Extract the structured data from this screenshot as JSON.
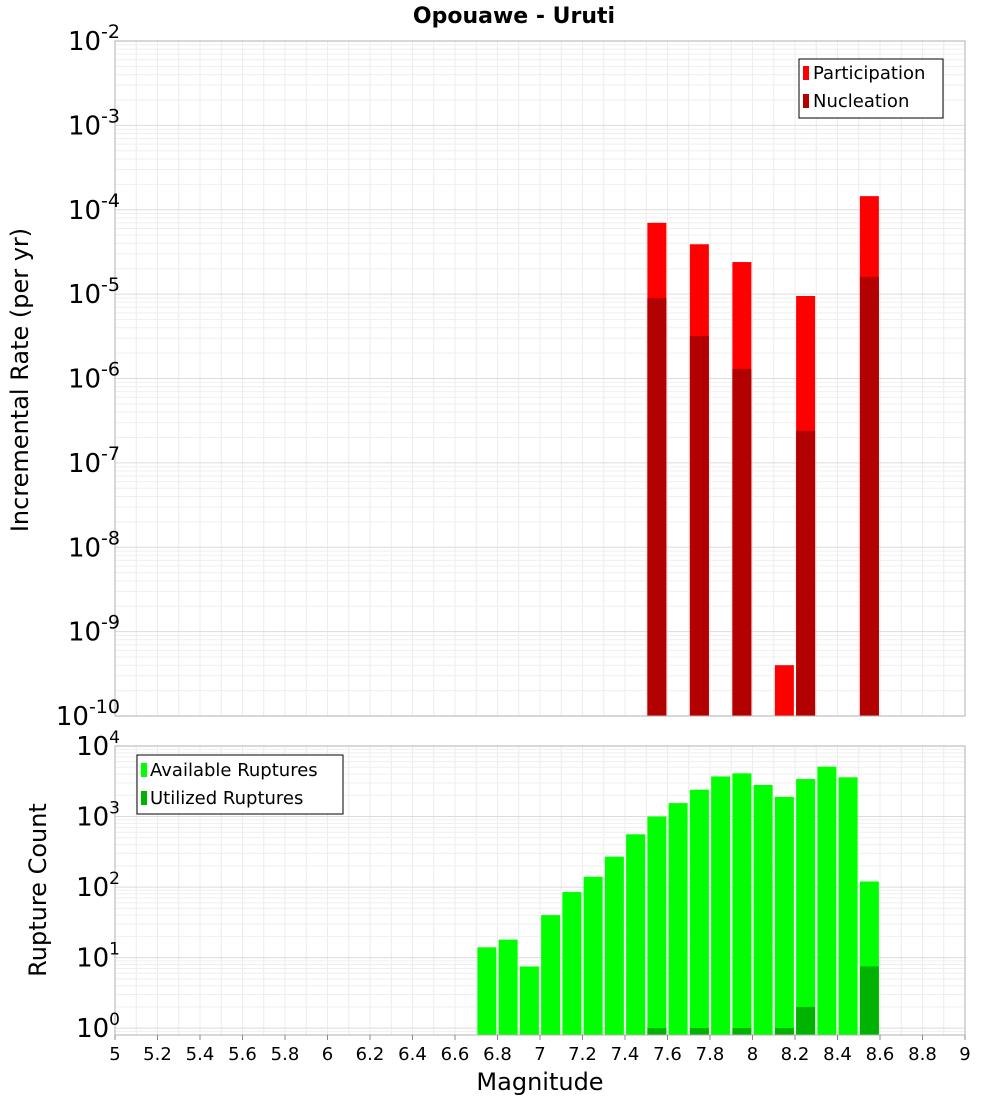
{
  "chart_data": [
    {
      "type": "bar",
      "title": "Opouawe - Uruti",
      "xlabel": "",
      "ylabel": "Incremental Rate (per yr)",
      "xlim": [
        5,
        9
      ],
      "ylim": [
        1e-10,
        0.01
      ],
      "yscale": "log",
      "grid": true,
      "legend_position": "top-right",
      "x": [
        7.55,
        7.75,
        7.95,
        8.15,
        8.25,
        8.55
      ],
      "series": [
        {
          "name": "Participation",
          "color": "#ff0000",
          "values": [
            7e-05,
            3.9e-05,
            2.4e-05,
            4e-10,
            9.5e-06,
            0.000145
          ]
        },
        {
          "name": "Nucleation",
          "color": "#b30000",
          "values": [
            9e-06,
            3.2e-06,
            1.3e-06,
            null,
            2.4e-07,
            1.6e-05
          ]
        }
      ],
      "ytick_exponents": [
        -10,
        -9,
        -8,
        -7,
        -6,
        -5,
        -4,
        -3,
        -2
      ]
    },
    {
      "type": "bar",
      "title": "",
      "xlabel": "Magnitude",
      "ylabel": "Rupture Count",
      "xlim": [
        5,
        9
      ],
      "ylim": [
        0.8,
        10000
      ],
      "yscale": "log",
      "grid": true,
      "legend_position": "top-left",
      "x": [
        6.75,
        6.85,
        6.95,
        7.05,
        7.15,
        7.25,
        7.35,
        7.45,
        7.55,
        7.65,
        7.75,
        7.85,
        7.95,
        8.05,
        8.15,
        8.25,
        8.35,
        8.45,
        8.55
      ],
      "series": [
        {
          "name": "Available Ruptures",
          "color": "#00ff00",
          "values": [
            14,
            18,
            7.5,
            40,
            85,
            140,
            270,
            560,
            1000,
            1550,
            2400,
            3700,
            4100,
            2800,
            1900,
            3400,
            5100,
            3600,
            120
          ]
        },
        {
          "name": "Utilized Ruptures",
          "color": "#00b300",
          "values": [
            null,
            null,
            null,
            null,
            null,
            null,
            null,
            null,
            1,
            null,
            1,
            null,
            1,
            null,
            1,
            2,
            null,
            null,
            7.5
          ]
        }
      ],
      "ytick_exponents": [
        0,
        1,
        2,
        3,
        4
      ],
      "xticks": [
        "5",
        "5.2",
        "5.4",
        "5.6",
        "5.8",
        "6",
        "6.2",
        "6.4",
        "6.6",
        "6.8",
        "7",
        "7.2",
        "7.4",
        "7.6",
        "7.8",
        "8",
        "8.2",
        "8.4",
        "8.6",
        "8.8",
        "9"
      ]
    }
  ]
}
